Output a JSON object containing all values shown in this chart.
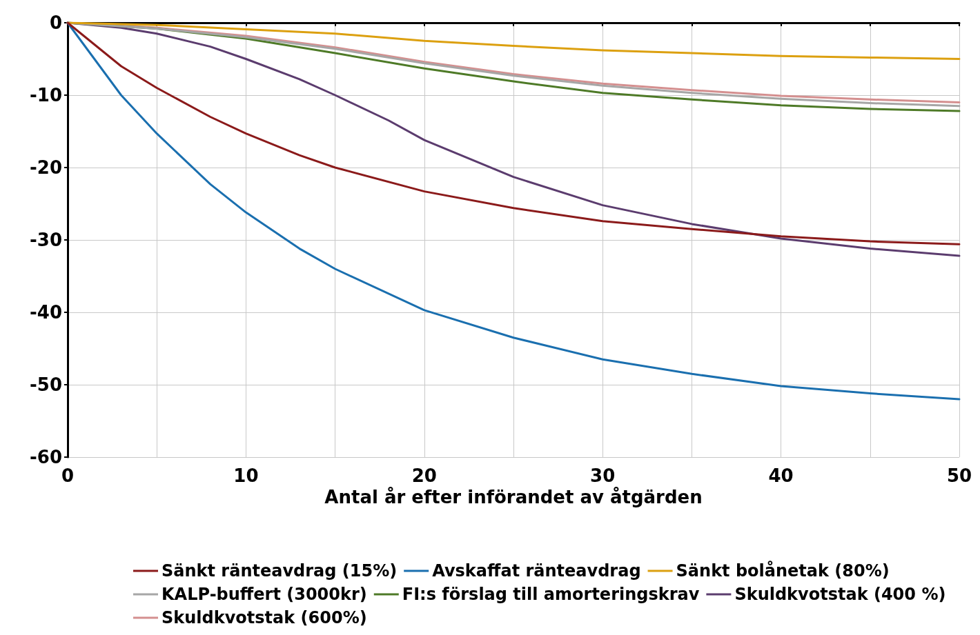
{
  "chart_data": {
    "type": "line",
    "xlabel": "Antal år efter införandet av åtgärden",
    "xlim": [
      0,
      50
    ],
    "xticks": [
      0,
      {
        "value": 5,
        "label": null
      },
      10,
      {
        "value": 15,
        "label": null
      },
      20,
      {
        "value": 25,
        "label": null
      },
      30,
      {
        "value": 35,
        "label": null
      },
      40,
      {
        "value": 45,
        "label": null
      },
      50
    ],
    "ylim": [
      -60,
      0
    ],
    "yticks": [
      -60,
      -50,
      -40,
      -30,
      -20,
      -10,
      0
    ],
    "grid": true,
    "legend": "bottom",
    "marker": "none",
    "line_style": "solid",
    "series": [
      {
        "name": "Sänkt ränteavdrag (15%)",
        "color": "#8b1a1a",
        "x": [
          0,
          3,
          5,
          8,
          10,
          13,
          15,
          20,
          25,
          30,
          35,
          40,
          45,
          50
        ],
        "values": [
          0,
          -6,
          -9,
          -13,
          -15.3,
          -18.3,
          -20,
          -23.3,
          -25.6,
          -27.4,
          -28.5,
          -29.5,
          -30.2,
          -30.6
        ]
      },
      {
        "name": "Avskaffat ränteavdrag",
        "color": "#1a6faf",
        "x": [
          0,
          3,
          5,
          8,
          10,
          13,
          15,
          20,
          25,
          30,
          35,
          40,
          45,
          50
        ],
        "values": [
          0,
          -10,
          -15.3,
          -22.3,
          -26.2,
          -31.2,
          -34,
          -39.7,
          -43.5,
          -46.5,
          -48.5,
          -50.2,
          -51.2,
          -52
        ]
      },
      {
        "name": "Sänkt bolånetak (80%)",
        "color": "#dca010",
        "x": [
          0,
          5,
          10,
          15,
          20,
          25,
          30,
          35,
          40,
          45,
          50
        ],
        "values": [
          0,
          -0.3,
          -0.9,
          -1.5,
          -2.5,
          -3.2,
          -3.8,
          -4.2,
          -4.6,
          -4.8,
          -5
        ]
      },
      {
        "name": "KALP-buffert (3000kr)",
        "color": "#a6a6a6",
        "x": [
          0,
          5,
          10,
          15,
          20,
          25,
          30,
          35,
          40,
          45,
          50
        ],
        "values": [
          0,
          -0.8,
          -2,
          -3.6,
          -5.6,
          -7.3,
          -8.7,
          -9.7,
          -10.5,
          -11.1,
          -11.5
        ]
      },
      {
        "name": "FI:s förslag till amorteringskrav",
        "color": "#4e7a27",
        "x": [
          0,
          5,
          10,
          15,
          20,
          25,
          30,
          35,
          40,
          45,
          50
        ],
        "values": [
          0,
          -0.8,
          -2.2,
          -4.2,
          -6.3,
          -8.1,
          -9.7,
          -10.6,
          -11.4,
          -11.9,
          -12.2
        ]
      },
      {
        "name": "Skuldkvotstak (400 %)",
        "color": "#5b3c6e",
        "x": [
          0,
          3,
          5,
          8,
          10,
          13,
          15,
          18,
          20,
          25,
          30,
          35,
          40,
          45,
          50
        ],
        "values": [
          0,
          -0.7,
          -1.5,
          -3.3,
          -5,
          -7.8,
          -10,
          -13.5,
          -16.2,
          -21.3,
          -25.2,
          -27.8,
          -29.8,
          -31.2,
          -32.2
        ]
      },
      {
        "name": "Skuldkvotstak (600%)",
        "color": "#d48f8f",
        "x": [
          0,
          5,
          10,
          15,
          20,
          25,
          30,
          35,
          40,
          45,
          50
        ],
        "values": [
          0,
          -0.7,
          -1.8,
          -3.4,
          -5.4,
          -7.1,
          -8.4,
          -9.3,
          -10.1,
          -10.6,
          -11
        ]
      }
    ]
  }
}
